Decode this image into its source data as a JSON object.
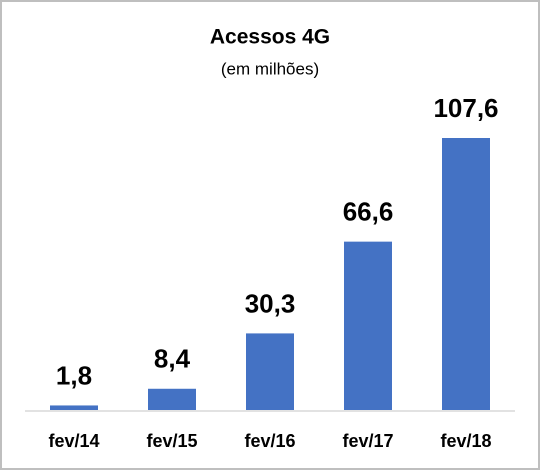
{
  "chart_data": {
    "type": "bar",
    "title": "Acessos 4G",
    "subtitle": "(em milhões)",
    "categories": [
      "fev/14",
      "fev/15",
      "fev/16",
      "fev/17",
      "fev/18"
    ],
    "values": [
      1.8,
      8.4,
      30.3,
      66.6,
      107.6
    ],
    "value_labels": [
      "1,8",
      "8,4",
      "30,3",
      "66,6",
      "107,6"
    ],
    "color": "#4472c4"
  }
}
